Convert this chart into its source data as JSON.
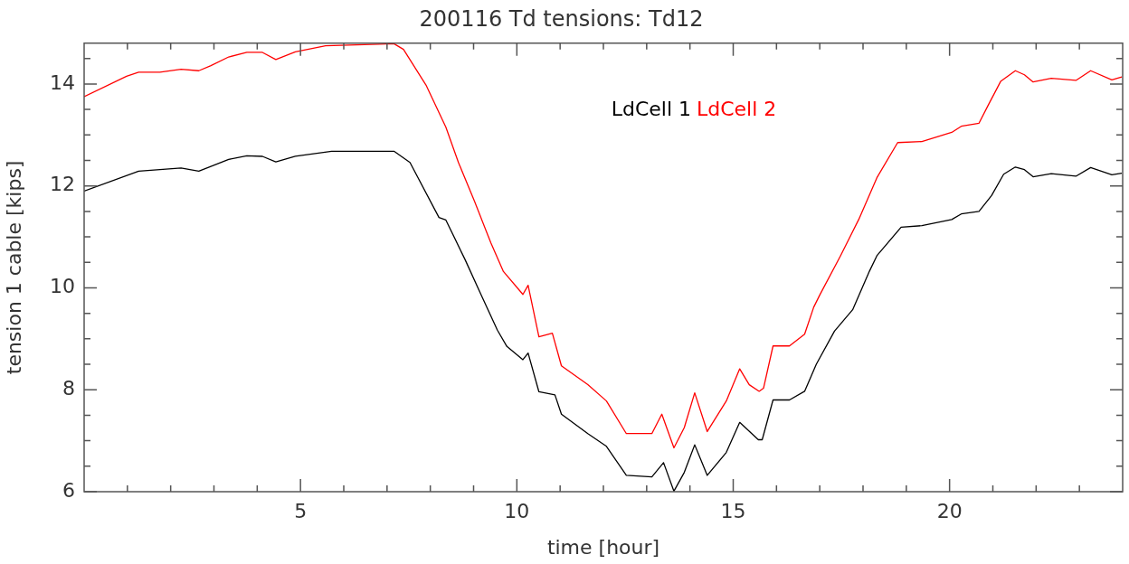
{
  "chart_data": {
    "type": "line",
    "title": "200116 Td tensions: Td12",
    "xlabel": "time [hour]",
    "ylabel": "tension 1 cable [kips]",
    "xlim": [
      0,
      24
    ],
    "ylim": [
      6,
      14.8
    ],
    "xticks": [
      {
        "value": 1,
        "label": null
      },
      {
        "value": 2,
        "label": null
      },
      {
        "value": 3,
        "label": null
      },
      {
        "value": 4,
        "label": null
      },
      5,
      {
        "value": 6,
        "label": null
      },
      {
        "value": 7,
        "label": null
      },
      {
        "value": 8,
        "label": null
      },
      {
        "value": 9,
        "label": null
      },
      10,
      {
        "value": 11,
        "label": null
      },
      {
        "value": 12,
        "label": null
      },
      {
        "value": 13,
        "label": null
      },
      {
        "value": 14,
        "label": null
      },
      15,
      {
        "value": 16,
        "label": null
      },
      {
        "value": 17,
        "label": null
      },
      {
        "value": 18,
        "label": null
      },
      {
        "value": 19,
        "label": null
      },
      20,
      {
        "value": 21,
        "label": null
      },
      {
        "value": 22,
        "label": null
      },
      {
        "value": 23,
        "label": null
      }
    ],
    "yticks": [
      6,
      {
        "value": 6.5,
        "label": null
      },
      {
        "value": 7,
        "label": null
      },
      {
        "value": 7.5,
        "label": null
      },
      8,
      {
        "value": 8.5,
        "label": null
      },
      {
        "value": 9,
        "label": null
      },
      {
        "value": 9.5,
        "label": null
      },
      10,
      {
        "value": 10.5,
        "label": null
      },
      {
        "value": 11,
        "label": null
      },
      {
        "value": 11.5,
        "label": null
      },
      12,
      {
        "value": 12.5,
        "label": null
      },
      {
        "value": 13,
        "label": null
      },
      {
        "value": 13.5,
        "label": null
      },
      14,
      {
        "value": 14.5,
        "label": null
      }
    ],
    "grid": false,
    "legend": "top",
    "marker": "none",
    "line_style": "solid",
    "series": [
      {
        "name": "LdCell 1",
        "color": "#000000",
        "x": [
          0,
          1.26,
          2.24,
          2.65,
          3.34,
          3.76,
          4.12,
          4.43,
          4.88,
          5.72,
          6.83,
          7.16,
          7.53,
          8.2,
          8.36,
          8.8,
          9.17,
          9.55,
          9.77,
          10.14,
          10.26,
          10.51,
          10.88,
          11.03,
          11.64,
          12.07,
          12.53,
          13.12,
          13.39,
          13.63,
          13.87,
          14.11,
          14.4,
          14.84,
          15.15,
          15.58,
          15.67,
          15.92,
          16.3,
          16.65,
          16.92,
          17.34,
          17.76,
          18.15,
          18.32,
          18.88,
          19.36,
          20.05,
          20.27,
          20.68,
          20.97,
          21.25,
          21.52,
          21.73,
          21.93,
          22.35,
          22.92,
          23.26,
          23.75,
          23.98
        ],
        "values": [
          11.9,
          12.29,
          12.35,
          12.29,
          12.52,
          12.59,
          12.58,
          12.47,
          12.58,
          12.68,
          12.68,
          12.68,
          12.46,
          11.38,
          11.33,
          10.56,
          9.87,
          9.17,
          8.85,
          8.59,
          8.72,
          7.96,
          7.9,
          7.52,
          7.14,
          6.89,
          6.32,
          6.29,
          6.57,
          6.01,
          6.38,
          6.92,
          6.32,
          6.77,
          7.36,
          7.02,
          7.02,
          7.8,
          7.8,
          7.97,
          8.5,
          9.15,
          9.57,
          10.33,
          10.63,
          11.19,
          11.22,
          11.34,
          11.45,
          11.5,
          11.81,
          12.23,
          12.37,
          12.32,
          12.18,
          12.24,
          12.19,
          12.36,
          12.22,
          12.25
        ]
      },
      {
        "name": "LdCell 2",
        "color": "#ff0000",
        "x": [
          0,
          0.98,
          1.26,
          1.75,
          2.24,
          2.65,
          2.93,
          3.34,
          3.76,
          4.12,
          4.43,
          4.88,
          5.58,
          6.83,
          7.16,
          7.38,
          7.9,
          8.36,
          8.65,
          9.02,
          9.4,
          9.69,
          10.14,
          10.26,
          10.51,
          10.82,
          11.03,
          11.64,
          12.07,
          12.53,
          13.12,
          13.35,
          13.63,
          13.87,
          14.11,
          14.4,
          14.84,
          15.15,
          15.37,
          15.6,
          15.7,
          15.92,
          16.3,
          16.65,
          16.86,
          17.0,
          17.48,
          17.9,
          18.32,
          18.8,
          19.36,
          20.05,
          20.27,
          20.68,
          20.89,
          21.18,
          21.52,
          21.73,
          21.93,
          22.35,
          22.92,
          23.26,
          23.75,
          23.98
        ],
        "values": [
          13.75,
          14.15,
          14.23,
          14.23,
          14.29,
          14.26,
          14.36,
          14.53,
          14.62,
          14.62,
          14.48,
          14.63,
          14.75,
          14.78,
          14.79,
          14.68,
          13.98,
          13.15,
          12.46,
          11.7,
          10.88,
          10.32,
          9.87,
          10.05,
          9.04,
          9.11,
          8.47,
          8.1,
          7.78,
          7.14,
          7.14,
          7.52,
          6.86,
          7.26,
          7.94,
          7.18,
          7.78,
          8.41,
          8.1,
          7.97,
          8.03,
          8.86,
          8.86,
          9.09,
          9.62,
          9.86,
          10.63,
          11.34,
          12.16,
          12.85,
          12.87,
          13.05,
          13.17,
          13.23,
          13.58,
          14.05,
          14.26,
          14.18,
          14.04,
          14.11,
          14.07,
          14.26,
          14.08,
          14.14
        ]
      }
    ]
  }
}
